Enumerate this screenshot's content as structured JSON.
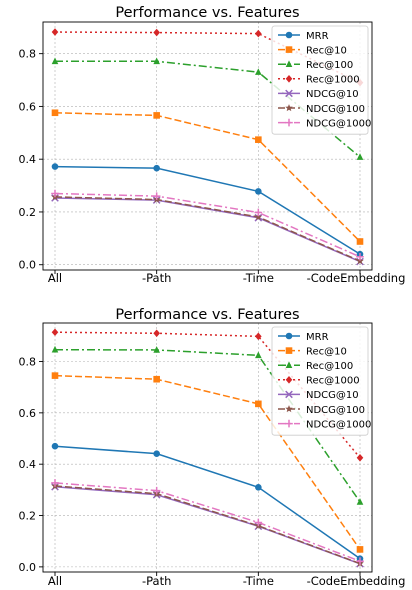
{
  "chart_data": [
    {
      "type": "line",
      "title": "Performance vs. Features",
      "xlabel": "",
      "ylabel": "",
      "categories": [
        "All",
        "-Path",
        "-Time",
        "-CodeEmbedding"
      ],
      "ylim": [
        -0.02,
        0.92
      ],
      "yticks": [
        0.0,
        0.2,
        0.4,
        0.6,
        0.8
      ],
      "ytick_labels": [
        "0.0",
        "0.2",
        "0.4",
        "0.6",
        "0.8"
      ],
      "grid": true,
      "legend_position": "top-right",
      "series": [
        {
          "name": "MRR",
          "values": [
            0.372,
            0.366,
            0.278,
            0.04
          ],
          "color": "#1f77b4",
          "dash": "solid",
          "marker": "circle"
        },
        {
          "name": "Rec@10",
          "values": [
            0.576,
            0.566,
            0.474,
            0.088
          ],
          "color": "#ff7f0e",
          "dash": "dashed",
          "marker": "square"
        },
        {
          "name": "Rec@100",
          "values": [
            0.771,
            0.771,
            0.73,
            0.408
          ],
          "color": "#2ca02c",
          "dash": "dashdot",
          "marker": "triangle"
        },
        {
          "name": "Rec@1000",
          "values": [
            0.882,
            0.88,
            0.876,
            0.69
          ],
          "color": "#d62728",
          "dash": "dotted",
          "marker": "diamond"
        },
        {
          "name": "NDCG@10",
          "values": [
            0.253,
            0.245,
            0.178,
            0.012
          ],
          "color": "#9467bd",
          "dash": "solid",
          "marker": "x"
        },
        {
          "name": "NDCG@100",
          "values": [
            0.257,
            0.247,
            0.181,
            0.014
          ],
          "color": "#8c564b",
          "dash": "dashed",
          "marker": "star"
        },
        {
          "name": "NDCG@1000",
          "values": [
            0.27,
            0.26,
            0.198,
            0.03
          ],
          "color": "#e377c2",
          "dash": "dashdot",
          "marker": "plus"
        }
      ]
    },
    {
      "type": "line",
      "title": "Performance vs. Features",
      "xlabel": "",
      "ylabel": "",
      "categories": [
        "All",
        "-Path",
        "-Time",
        "-CodeEmbedding"
      ],
      "ylim": [
        -0.02,
        0.95
      ],
      "yticks": [
        0.0,
        0.2,
        0.4,
        0.6,
        0.8
      ],
      "ytick_labels": [
        "0.0",
        "0.2",
        "0.4",
        "0.6",
        "0.8"
      ],
      "grid": true,
      "legend_position": "top-right",
      "series": [
        {
          "name": "MRR",
          "values": [
            0.47,
            0.441,
            0.31,
            0.032
          ],
          "color": "#1f77b4",
          "dash": "solid",
          "marker": "circle"
        },
        {
          "name": "Rec@10",
          "values": [
            0.745,
            0.731,
            0.635,
            0.068
          ],
          "color": "#ff7f0e",
          "dash": "dashed",
          "marker": "square"
        },
        {
          "name": "Rec@100",
          "values": [
            0.846,
            0.845,
            0.824,
            0.253
          ],
          "color": "#2ca02c",
          "dash": "dashdot",
          "marker": "triangle"
        },
        {
          "name": "Rec@1000",
          "values": [
            0.914,
            0.91,
            0.898,
            0.425
          ],
          "color": "#d62728",
          "dash": "dotted",
          "marker": "diamond"
        },
        {
          "name": "NDCG@10",
          "values": [
            0.312,
            0.281,
            0.158,
            0.012
          ],
          "color": "#9467bd",
          "dash": "solid",
          "marker": "x"
        },
        {
          "name": "NDCG@100",
          "values": [
            0.315,
            0.285,
            0.16,
            0.013
          ],
          "color": "#8c564b",
          "dash": "dashed",
          "marker": "star"
        },
        {
          "name": "NDCG@1000",
          "values": [
            0.327,
            0.297,
            0.173,
            0.022
          ],
          "color": "#e377c2",
          "dash": "dashdot",
          "marker": "plus"
        }
      ]
    }
  ]
}
